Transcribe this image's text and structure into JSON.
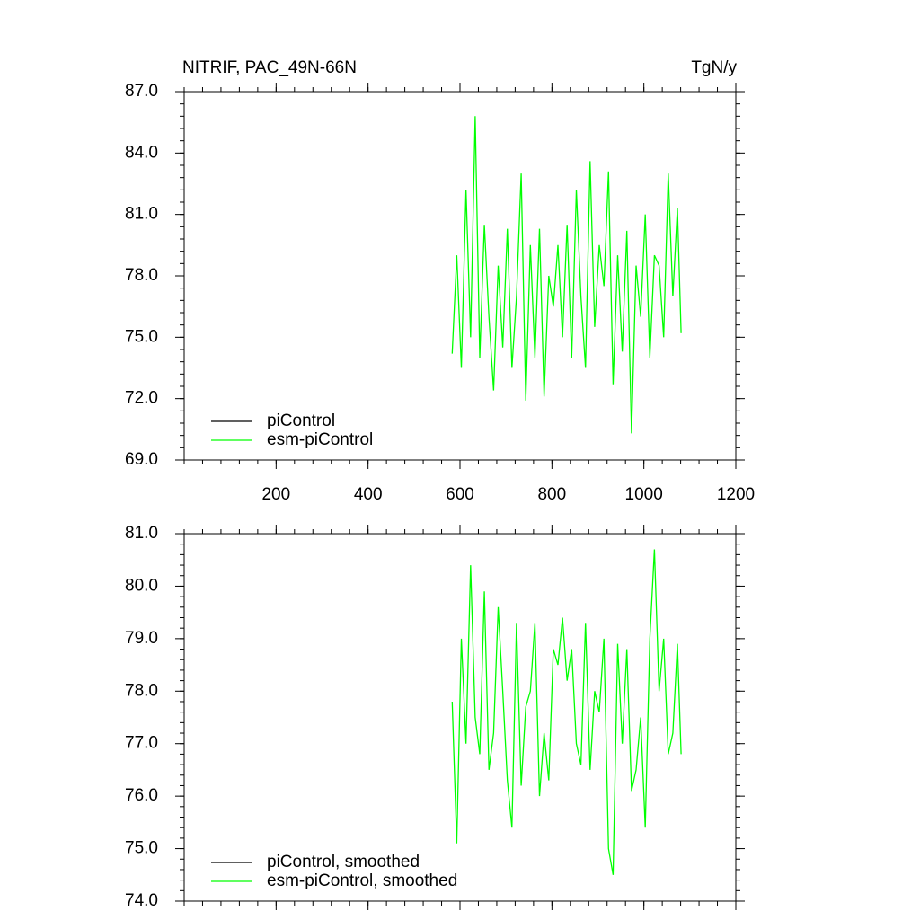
{
  "chart_data": [
    {
      "type": "line",
      "title": "NITRIF, PAC_49N-66N",
      "unit_label": "TgN/y",
      "x": [
        583,
        593,
        603,
        613,
        623,
        633,
        643,
        653,
        663,
        673,
        683,
        693,
        703,
        713,
        723,
        733,
        743,
        753,
        763,
        773,
        783,
        793,
        803,
        813,
        823,
        833,
        843,
        853,
        863,
        873,
        883,
        893,
        903,
        913,
        923,
        933,
        943,
        953,
        963,
        973,
        983,
        993,
        1003,
        1013,
        1023,
        1033,
        1043,
        1053,
        1063,
        1073,
        1081
      ],
      "series": [
        {
          "name": "piControl",
          "color": "#000000",
          "values": [
            null,
            null,
            null,
            null,
            null,
            null,
            null,
            null,
            null,
            null,
            null,
            null,
            null,
            null,
            null,
            null,
            null,
            null,
            null,
            null,
            null,
            null,
            null,
            null,
            null,
            null,
            null,
            null,
            null,
            null,
            null,
            null,
            null,
            null,
            null,
            null,
            null,
            null,
            null,
            null,
            null,
            null,
            null,
            null,
            null,
            null,
            null,
            null,
            null,
            null,
            null
          ]
        },
        {
          "name": "esm-piControl",
          "color": "#00ff00",
          "values": [
            74.2,
            79.0,
            73.5,
            82.2,
            75.0,
            85.8,
            74.0,
            80.5,
            76.0,
            72.4,
            78.5,
            74.5,
            80.3,
            73.5,
            77.0,
            83.0,
            71.9,
            79.5,
            74.0,
            80.3,
            72.1,
            78.0,
            76.5,
            79.5,
            75.0,
            80.5,
            74.0,
            82.2,
            77.0,
            73.5,
            83.6,
            75.5,
            79.5,
            77.5,
            83.1,
            72.7,
            79.0,
            74.3,
            80.2,
            70.3,
            78.5,
            76.0,
            81.0,
            74.0,
            79.0,
            78.5,
            75.0,
            83.0,
            77.0,
            81.3,
            75.2
          ]
        }
      ],
      "xlim": [
        0,
        1200
      ],
      "xticks": [
        200,
        400,
        600,
        800,
        1000,
        1200
      ],
      "ylim": [
        69,
        87
      ],
      "yticks": [
        {
          "value": 69,
          "label": "69.0"
        },
        {
          "value": 72,
          "label": "72.0"
        },
        {
          "value": 75,
          "label": "75.0"
        },
        {
          "value": 78,
          "label": "78.0"
        },
        {
          "value": 81,
          "label": "81.0"
        },
        {
          "value": 84,
          "label": "84.0"
        },
        {
          "value": 87,
          "label": "87.0"
        }
      ]
    },
    {
      "type": "line",
      "x": [
        583,
        593,
        603,
        613,
        623,
        633,
        643,
        653,
        663,
        673,
        683,
        693,
        703,
        713,
        723,
        733,
        743,
        753,
        763,
        773,
        783,
        793,
        803,
        813,
        823,
        833,
        843,
        853,
        863,
        873,
        883,
        893,
        903,
        913,
        923,
        933,
        943,
        953,
        963,
        973,
        983,
        993,
        1003,
        1013,
        1023,
        1033,
        1043,
        1053,
        1063,
        1073,
        1081
      ],
      "series": [
        {
          "name": "piControl, smoothed",
          "color": "#000000",
          "values": [
            null,
            null,
            null,
            null,
            null,
            null,
            null,
            null,
            null,
            null,
            null,
            null,
            null,
            null,
            null,
            null,
            null,
            null,
            null,
            null,
            null,
            null,
            null,
            null,
            null,
            null,
            null,
            null,
            null,
            null,
            null,
            null,
            null,
            null,
            null,
            null,
            null,
            null,
            null,
            null,
            null,
            null,
            null,
            null,
            null,
            null,
            null,
            null,
            null,
            null,
            null
          ]
        },
        {
          "name": "esm-piControl, smoothed",
          "color": "#00ff00",
          "values": [
            77.8,
            75.1,
            79.0,
            77.0,
            80.4,
            77.5,
            76.8,
            79.9,
            76.5,
            77.2,
            79.6,
            78.0,
            76.3,
            75.4,
            79.3,
            76.2,
            77.7,
            78.0,
            79.3,
            76.0,
            77.2,
            76.3,
            78.8,
            78.5,
            79.4,
            78.2,
            78.8,
            77.0,
            76.6,
            79.3,
            76.5,
            78.0,
            77.6,
            79.0,
            75.0,
            74.5,
            78.9,
            77.0,
            78.8,
            76.1,
            76.5,
            77.5,
            75.4,
            79.0,
            80.7,
            78.0,
            79.0,
            76.8,
            77.2,
            78.9,
            76.8
          ]
        }
      ],
      "xlim": [
        0,
        1200
      ],
      "ylim": [
        74,
        81
      ],
      "yticks": [
        {
          "value": 74,
          "label": "74.0"
        },
        {
          "value": 75,
          "label": "75.0"
        },
        {
          "value": 76,
          "label": "76.0"
        },
        {
          "value": 77,
          "label": "77.0"
        },
        {
          "value": 78,
          "label": "78.0"
        },
        {
          "value": 79,
          "label": "79.0"
        },
        {
          "value": 80,
          "label": "80.0"
        },
        {
          "value": 81,
          "label": "81.0"
        }
      ]
    }
  ]
}
